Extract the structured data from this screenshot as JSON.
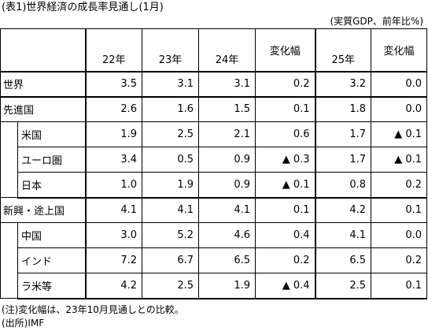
{
  "title": "(表1)世界経済の成長率見通し(1月)",
  "unit": "(実質GDP、前年比%)",
  "headers": {
    "y22": "22年",
    "y23": "23年",
    "y24": "24年",
    "chg24": "変化幅",
    "y25": "25年",
    "chg25": "変化幅"
  },
  "rows": [
    {
      "label": "世界",
      "v22": "3.5",
      "v23": "3.1",
      "v24": "3.1",
      "c24": "0.2",
      "v25": "3.2",
      "c25": "0.0"
    },
    {
      "label": "先進国",
      "v22": "2.6",
      "v23": "1.6",
      "v24": "1.5",
      "c24": "0.1",
      "v25": "1.8",
      "c25": "0.0"
    },
    {
      "label": "米国",
      "v22": "1.9",
      "v23": "2.5",
      "v24": "2.1",
      "c24": "0.6",
      "v25": "1.7",
      "c25": "▲ 0.1"
    },
    {
      "label": "ユーロ圏",
      "v22": "3.4",
      "v23": "0.5",
      "v24": "0.9",
      "c24": "▲ 0.3",
      "v25": "1.7",
      "c25": "▲ 0.1"
    },
    {
      "label": "日本",
      "v22": "1.0",
      "v23": "1.9",
      "v24": "0.9",
      "c24": "▲ 0.1",
      "v25": "0.8",
      "c25": "0.2"
    },
    {
      "label": "新興・途上国",
      "v22": "4.1",
      "v23": "4.1",
      "v24": "4.1",
      "c24": "0.1",
      "v25": "4.2",
      "c25": "0.1"
    },
    {
      "label": "中国",
      "v22": "3.0",
      "v23": "5.2",
      "v24": "4.6",
      "c24": "0.4",
      "v25": "4.1",
      "c25": "0.0"
    },
    {
      "label": "インド",
      "v22": "7.2",
      "v23": "6.7",
      "v24": "6.5",
      "c24": "0.2",
      "v25": "6.5",
      "c25": "0.2"
    },
    {
      "label": "ラ米等",
      "v22": "4.2",
      "v23": "2.5",
      "v24": "1.9",
      "c24": "▲ 0.4",
      "v25": "2.5",
      "c25": "0.1"
    }
  ],
  "notes": {
    "note1": "(注)変化幅は、23年10月見通しとの比較。",
    "note2": "(出所)IMF"
  }
}
